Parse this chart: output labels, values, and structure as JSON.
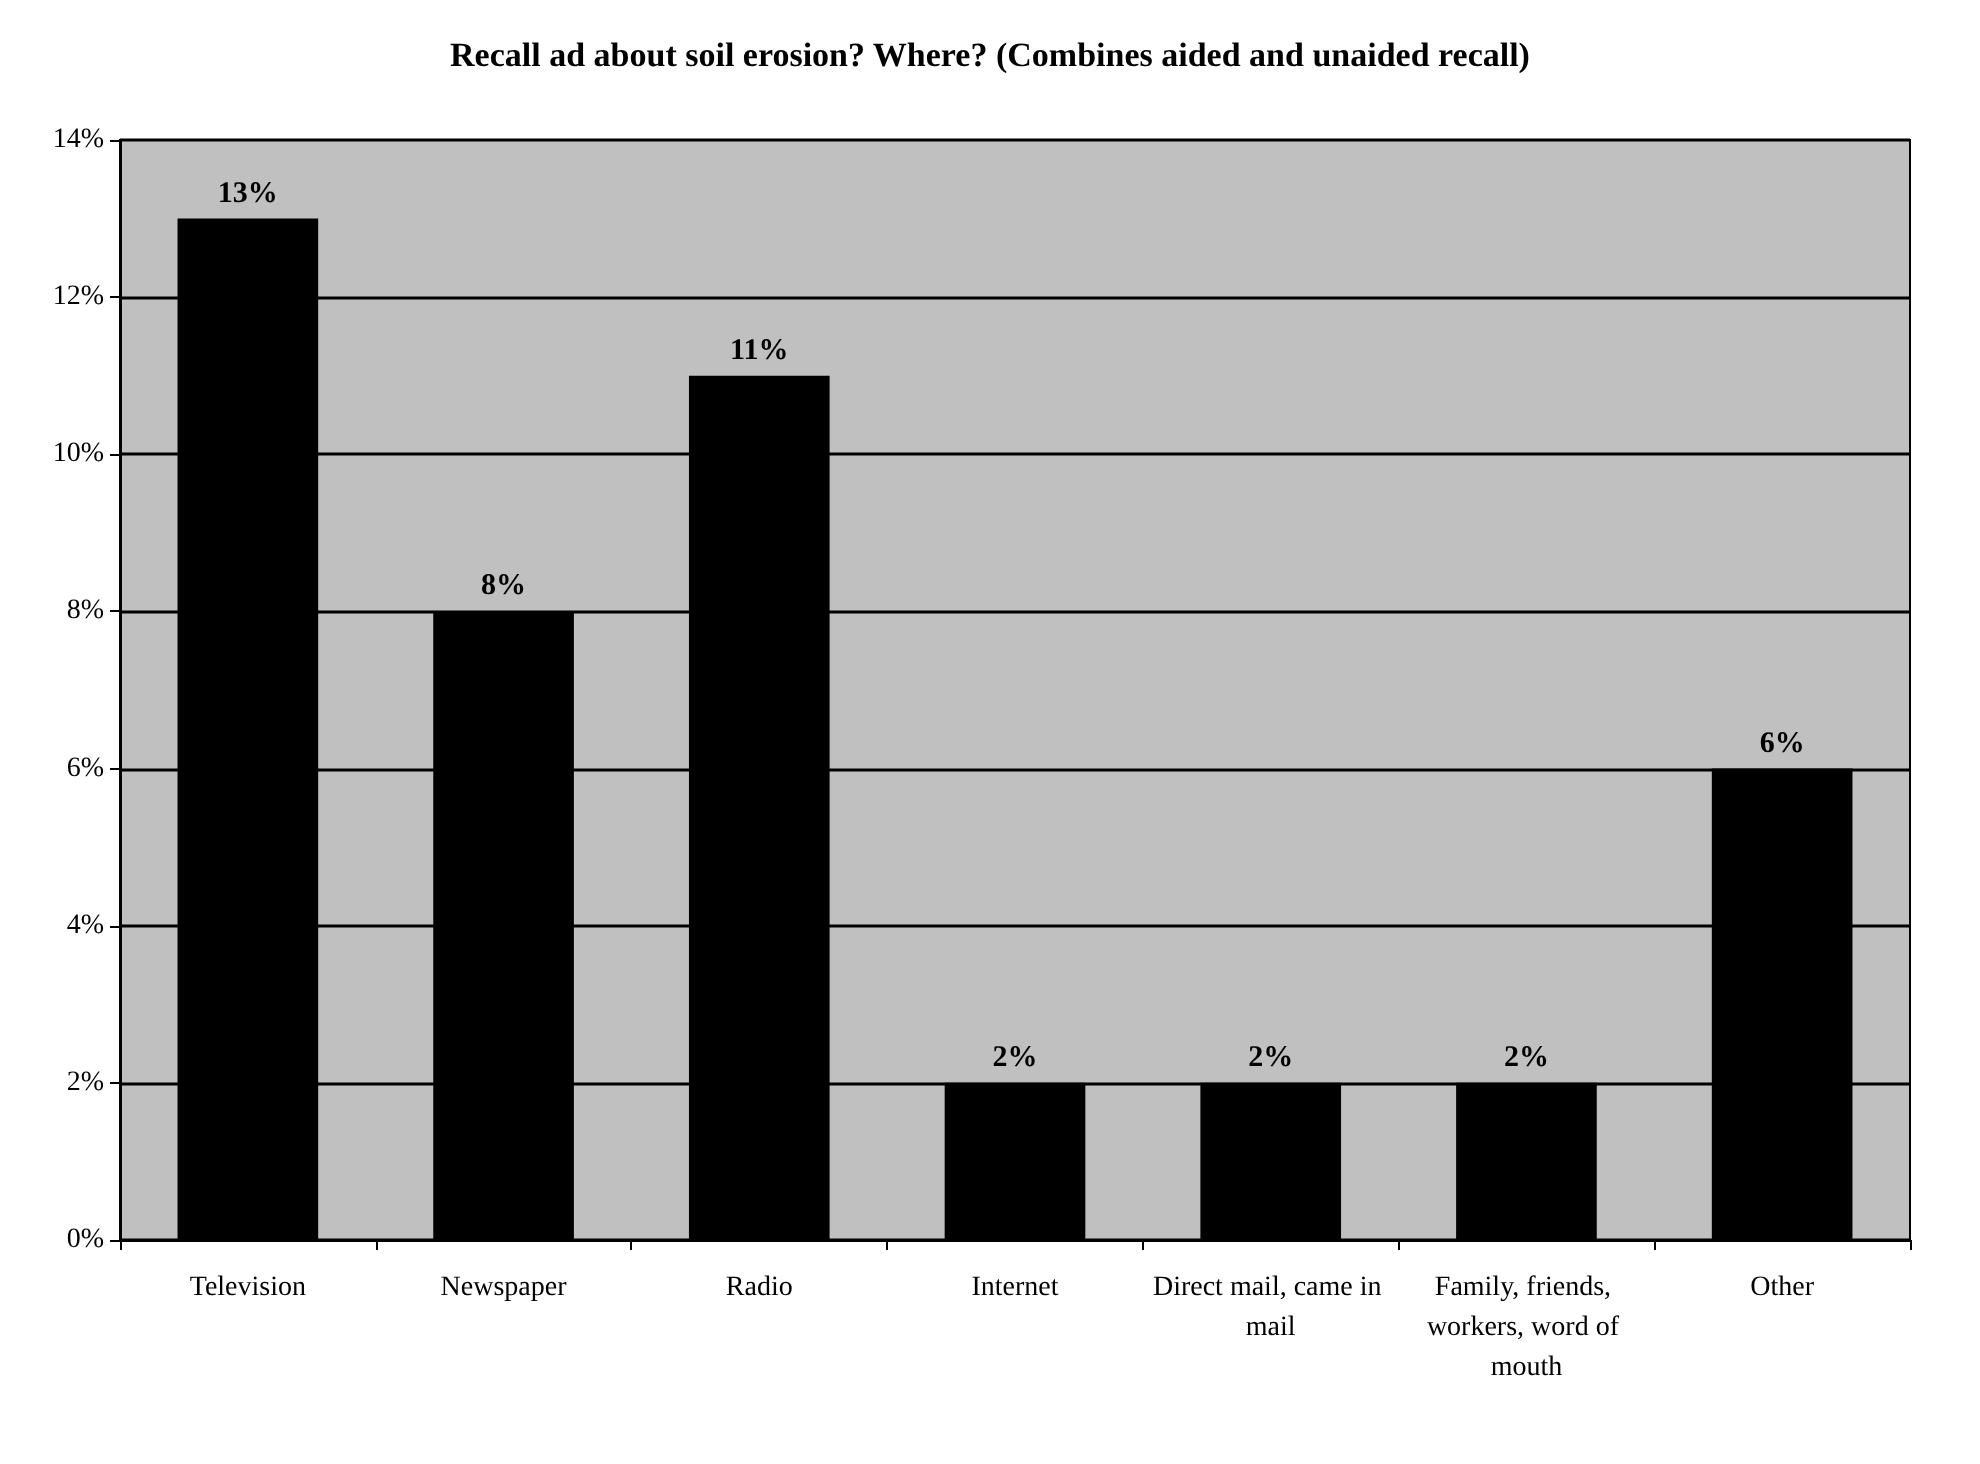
{
  "chart_data": {
    "type": "bar",
    "title": "Recall ad about soil erosion? Where? (Combines aided and unaided recall)",
    "categories": [
      "Television",
      "Newspaper",
      "Radio",
      "Internet",
      "Direct mail, came in mail",
      "Family, friends, workers, word of mouth",
      "Other"
    ],
    "values": [
      13,
      8,
      11,
      2,
      2,
      2,
      6
    ],
    "value_labels": [
      "13%",
      "8%",
      "11%",
      "2%",
      "2%",
      "2%",
      "6%"
    ],
    "color": "#000000",
    "ylim": [
      0,
      14
    ],
    "yticks": [
      {
        "value": 0,
        "label": "0%"
      },
      {
        "value": 2,
        "label": "2%"
      },
      {
        "value": 4,
        "label": "4%"
      },
      {
        "value": 6,
        "label": "6%"
      },
      {
        "value": 8,
        "label": "8%"
      },
      {
        "value": 10,
        "label": "10%"
      },
      {
        "value": 12,
        "label": "12%"
      },
      {
        "value": 14,
        "label": "14%"
      }
    ],
    "grid": "y"
  }
}
